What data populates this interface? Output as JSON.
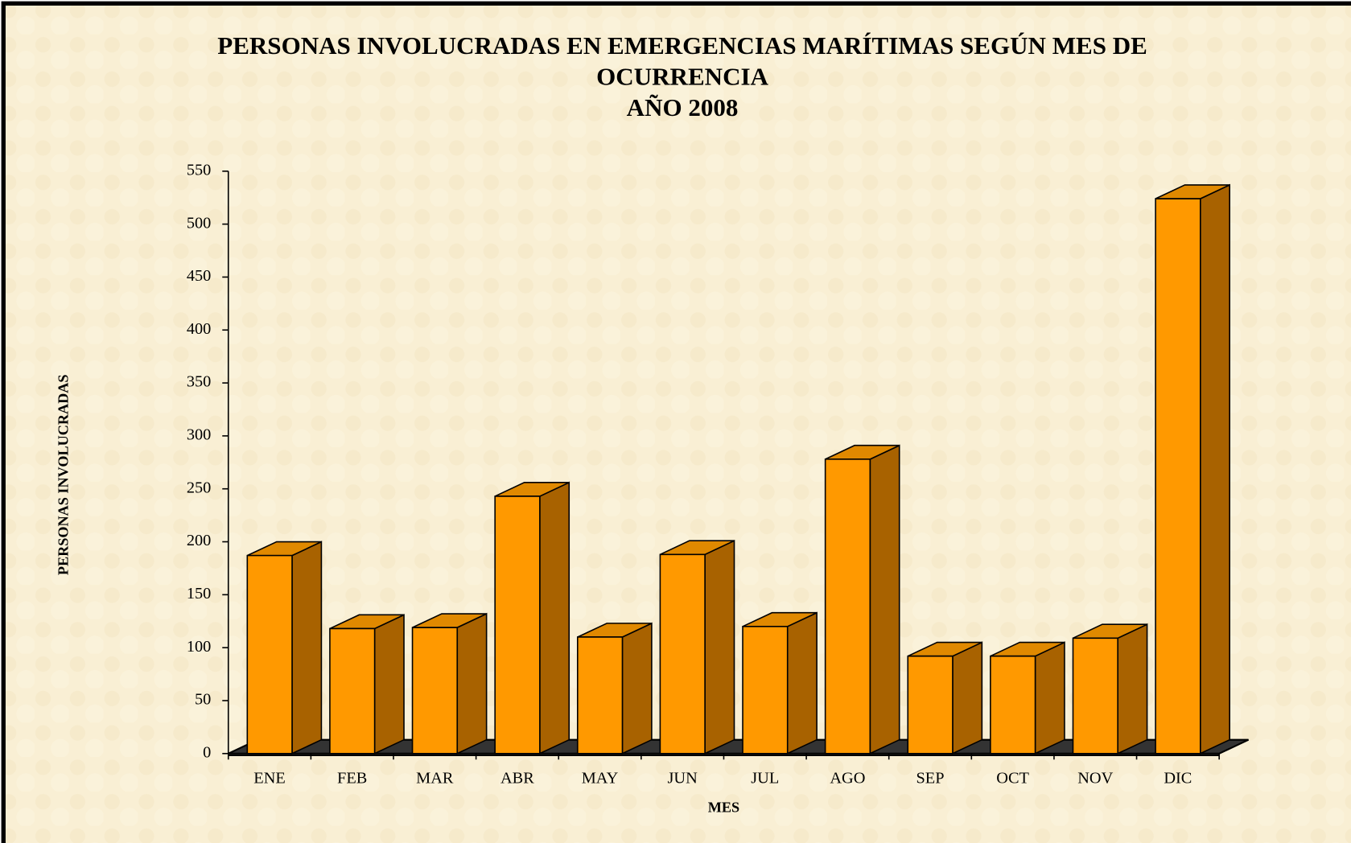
{
  "chart_data": {
    "type": "bar3d",
    "title": [
      "PERSONAS INVOLUCRADAS EN EMERGENCIAS MARÍTIMAS SEGÚN MES DE",
      "OCURRENCIA"
    ],
    "subtitle": "AÑO 2008",
    "x_label": "MES",
    "y_label": "PERSONAS INVOLUCRADAS",
    "categories": [
      "ENE",
      "FEB",
      "MAR",
      "ABR",
      "MAY",
      "JUN",
      "JUL",
      "AGO",
      "SEP",
      "OCT",
      "NOV",
      "DIC"
    ],
    "values": [
      187,
      118,
      119,
      243,
      110,
      188,
      120,
      278,
      92,
      92,
      109,
      524
    ],
    "color": "#ff9900",
    "ylim": [
      0,
      550
    ],
    "yticks": [
      0,
      50,
      100,
      150,
      200,
      250,
      300,
      350,
      400,
      450,
      500,
      550
    ],
    "grid": false
  }
}
